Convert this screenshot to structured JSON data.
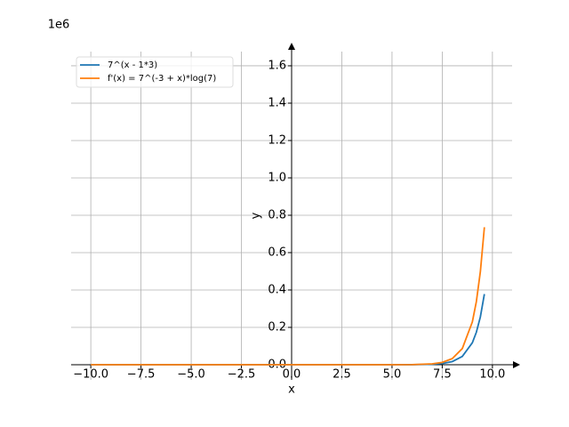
{
  "chart_data": {
    "type": "line",
    "y_offset_label": "1e6",
    "x_label": "x",
    "y_label": "y",
    "x": [
      -10,
      -5,
      0,
      5,
      6,
      7,
      7.5,
      8,
      8.5,
      9,
      9.2,
      9.4,
      9.6
    ],
    "series": [
      {
        "name": "7^(x - 1*3)",
        "color": "#1f77b4",
        "values": [
          0,
          0,
          0,
          5e-05,
          0.00034,
          0.0024,
          0.00635,
          0.0168,
          0.0445,
          0.1176,
          0.1736,
          0.2562,
          0.3781
        ]
      },
      {
        "name": "f'(x) = 7^(-3 + x)*log(7)",
        "color": "#ff7f0e",
        "values": [
          0,
          0,
          0,
          0.0001,
          0.00067,
          0.00467,
          0.01236,
          0.0327,
          0.0865,
          0.2289,
          0.3378,
          0.4986,
          0.7358
        ]
      }
    ],
    "xlim": [
      -10.98,
      10.98
    ],
    "ylim": [
      -0.081,
      1.676
    ],
    "xticks": [
      {
        "value": -10,
        "label": "−10.0"
      },
      {
        "value": -7.5,
        "label": "−7.5"
      },
      {
        "value": -5,
        "label": "−5.0"
      },
      {
        "value": -2.5,
        "label": "−2.5"
      },
      {
        "value": 0,
        "label": "0.0"
      },
      {
        "value": 2.5,
        "label": "2.5"
      },
      {
        "value": 5,
        "label": "5.0"
      },
      {
        "value": 7.5,
        "label": "7.5"
      },
      {
        "value": 10,
        "label": "10.0"
      }
    ],
    "yticks": [
      {
        "value": 0,
        "label": "0.0"
      },
      {
        "value": 0.2,
        "label": "0.2"
      },
      {
        "value": 0.4,
        "label": "0.4"
      },
      {
        "value": 0.6,
        "label": "0.6"
      },
      {
        "value": 0.8,
        "label": "0.8"
      },
      {
        "value": 1.0,
        "label": "1.0"
      },
      {
        "value": 1.2,
        "label": "1.2"
      },
      {
        "value": 1.4,
        "label": "1.4"
      },
      {
        "value": 1.6,
        "label": "1.6"
      }
    ],
    "grid": true,
    "legend": "upper left"
  }
}
